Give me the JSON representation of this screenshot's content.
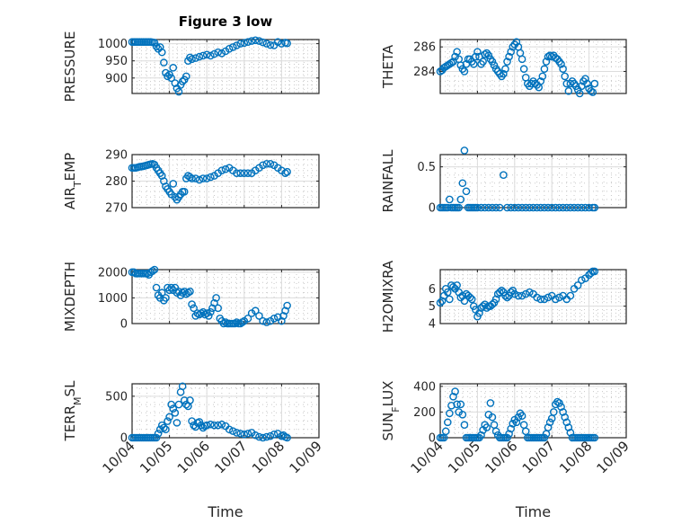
{
  "figure": {
    "title": "Figure 3 low",
    "background": "#ffffff",
    "marker_color": "#0072BD"
  },
  "chart_data": [
    {
      "id": "pressure",
      "type": "scatter",
      "title": "Figure 3 low",
      "ylabel": "PRESSURE",
      "ylabel_sub": null,
      "xlabel": "",
      "xticklabels": [
        "10/04",
        "10/05",
        "10/06",
        "10/07",
        "10/08",
        "10/09"
      ],
      "show_xticklabels": false,
      "xlim": [
        0,
        5
      ],
      "ylim": [
        855,
        1012
      ],
      "yticks": [
        900,
        950,
        1000
      ],
      "yticklabels": [
        "900",
        "950",
        "1000"
      ],
      "grid": true,
      "x": [
        0.0,
        0.05,
        0.1,
        0.15,
        0.2,
        0.25,
        0.3,
        0.35,
        0.4,
        0.45,
        0.5,
        0.55,
        0.6,
        0.65,
        0.7,
        0.75,
        0.8,
        0.85,
        0.9,
        0.95,
        1.0,
        1.05,
        1.1,
        1.15,
        1.2,
        1.25,
        1.3,
        1.35,
        1.4,
        1.45,
        1.5,
        1.55,
        1.6,
        1.7,
        1.8,
        1.9,
        2.0,
        2.1,
        2.2,
        2.3,
        2.4,
        2.5,
        2.6,
        2.7,
        2.8,
        2.9,
        3.0,
        3.1,
        3.2,
        3.3,
        3.4,
        3.5,
        3.6,
        3.7,
        3.8,
        3.9,
        4.0,
        4.1,
        4.15
      ],
      "y": [
        1005,
        1005,
        1005,
        1005,
        1005,
        1005,
        1005,
        1005,
        1005,
        1005,
        1005,
        1004,
        1003,
        992,
        985,
        990,
        975,
        945,
        915,
        905,
        910,
        900,
        930,
        885,
        870,
        860,
        880,
        890,
        895,
        905,
        950,
        960,
        955,
        958,
        962,
        965,
        968,
        965,
        970,
        975,
        972,
        978,
        985,
        990,
        995,
        1000,
        1002,
        1005,
        1008,
        1010,
        1008,
        1004,
        1000,
        996,
        995,
        1005,
        1000,
        1003,
        1001
      ]
    },
    {
      "id": "theta",
      "type": "scatter",
      "ylabel": "THETA",
      "ylabel_sub": null,
      "xlabel": "",
      "xticklabels": [
        "10/04",
        "10/05",
        "10/06",
        "10/07",
        "10/08",
        "10/09"
      ],
      "show_xticklabels": false,
      "xlim": [
        0,
        5
      ],
      "ylim": [
        282.2,
        286.6
      ],
      "yticks": [
        284,
        286
      ],
      "yticklabels": [
        "284",
        "286"
      ],
      "grid": true,
      "x": [
        0.0,
        0.05,
        0.1,
        0.15,
        0.2,
        0.25,
        0.3,
        0.35,
        0.4,
        0.45,
        0.5,
        0.55,
        0.6,
        0.65,
        0.7,
        0.75,
        0.8,
        0.85,
        0.9,
        0.95,
        1.0,
        1.05,
        1.1,
        1.15,
        1.2,
        1.25,
        1.3,
        1.35,
        1.4,
        1.45,
        1.5,
        1.55,
        1.6,
        1.65,
        1.7,
        1.75,
        1.8,
        1.85,
        1.9,
        1.95,
        2.0,
        2.05,
        2.1,
        2.15,
        2.2,
        2.25,
        2.3,
        2.35,
        2.4,
        2.45,
        2.5,
        2.55,
        2.6,
        2.65,
        2.7,
        2.75,
        2.8,
        2.85,
        2.9,
        2.95,
        3.0,
        3.05,
        3.1,
        3.15,
        3.2,
        3.25,
        3.3,
        3.35,
        3.4,
        3.45,
        3.5,
        3.55,
        3.6,
        3.65,
        3.7,
        3.75,
        3.8,
        3.85,
        3.9,
        3.95,
        4.0,
        4.05,
        4.1,
        4.15
      ],
      "y": [
        284.0,
        284.1,
        284.3,
        284.4,
        284.5,
        284.6,
        284.7,
        284.8,
        285.2,
        285.6,
        285.0,
        284.5,
        284.2,
        284.0,
        284.6,
        285.0,
        285.0,
        284.8,
        284.6,
        285.2,
        285.6,
        285.2,
        284.6,
        284.8,
        285.4,
        285.5,
        285.3,
        285.0,
        284.8,
        284.5,
        284.2,
        284.0,
        283.8,
        283.6,
        283.8,
        284.2,
        284.8,
        285.2,
        285.6,
        286.0,
        286.2,
        286.4,
        286.0,
        285.5,
        285.0,
        284.2,
        283.5,
        283.0,
        282.8,
        283.0,
        283.2,
        283.0,
        282.9,
        282.7,
        283.2,
        283.6,
        284.2,
        284.8,
        285.2,
        285.3,
        285.2,
        285.3,
        285.1,
        285.0,
        284.8,
        284.6,
        284.2,
        283.6,
        283.0,
        282.4,
        283.0,
        283.2,
        283.0,
        282.8,
        282.5,
        282.2,
        282.8,
        283.2,
        283.4,
        283.0,
        282.6,
        282.4,
        282.3,
        283.0
      ]
    },
    {
      "id": "air_temp",
      "type": "scatter",
      "ylabel": "AIR",
      "ylabel_sub": "T",
      "ylabel_rest": "EMP",
      "xlabel": "",
      "xticklabels": [
        "10/04",
        "10/05",
        "10/06",
        "10/07",
        "10/08",
        "10/09"
      ],
      "show_xticklabels": false,
      "xlim": [
        0,
        5
      ],
      "ylim": [
        270,
        290
      ],
      "yticks": [
        270,
        280,
        290
      ],
      "yticklabels": [
        "270",
        "280",
        "290"
      ],
      "grid": true,
      "x": [
        0.0,
        0.05,
        0.1,
        0.15,
        0.2,
        0.25,
        0.3,
        0.35,
        0.4,
        0.45,
        0.5,
        0.55,
        0.6,
        0.65,
        0.7,
        0.75,
        0.8,
        0.85,
        0.9,
        0.95,
        1.0,
        1.05,
        1.1,
        1.15,
        1.2,
        1.25,
        1.3,
        1.35,
        1.4,
        1.45,
        1.5,
        1.55,
        1.6,
        1.7,
        1.8,
        1.9,
        2.0,
        2.1,
        2.2,
        2.3,
        2.4,
        2.5,
        2.6,
        2.7,
        2.8,
        2.9,
        3.0,
        3.1,
        3.2,
        3.3,
        3.4,
        3.5,
        3.6,
        3.7,
        3.8,
        3.9,
        4.0,
        4.1,
        4.15
      ],
      "y": [
        285,
        285,
        285,
        285.2,
        285.4,
        285.5,
        285.6,
        285.8,
        286,
        286.2,
        286.4,
        286.5,
        286.2,
        285,
        284,
        283,
        282,
        280,
        278,
        277,
        276,
        275,
        279,
        274,
        273,
        274,
        275,
        276,
        276,
        281,
        282,
        281.5,
        281,
        281,
        280.5,
        281,
        281,
        281.5,
        282,
        283,
        284,
        284.5,
        285,
        284,
        283,
        283,
        283,
        283,
        283,
        284,
        285,
        286,
        286.5,
        286.5,
        286,
        285,
        284,
        283,
        283.5
      ]
    },
    {
      "id": "rainfall",
      "type": "scatter",
      "ylabel": "RAINFALL",
      "ylabel_sub": null,
      "xlabel": "",
      "xticklabels": [
        "10/04",
        "10/05",
        "10/06",
        "10/07",
        "10/08",
        "10/09"
      ],
      "show_xticklabels": false,
      "xlim": [
        0,
        5
      ],
      "ylim": [
        0,
        0.65
      ],
      "yticks": [
        0,
        0.5
      ],
      "yticklabels": [
        "0",
        "0.5"
      ],
      "grid": true,
      "x": [
        0.0,
        0.05,
        0.1,
        0.15,
        0.2,
        0.25,
        0.3,
        0.35,
        0.4,
        0.45,
        0.5,
        0.55,
        0.6,
        0.65,
        0.7,
        0.75,
        0.8,
        0.85,
        0.9,
        0.95,
        1.0,
        1.1,
        1.2,
        1.3,
        1.4,
        1.5,
        1.6,
        1.7,
        1.8,
        1.9,
        2.0,
        2.1,
        2.2,
        2.3,
        2.4,
        2.5,
        2.6,
        2.7,
        2.8,
        2.9,
        3.0,
        3.1,
        3.2,
        3.3,
        3.4,
        3.5,
        3.6,
        3.7,
        3.8,
        3.9,
        4.0,
        4.1,
        4.15
      ],
      "y": [
        0,
        0,
        0,
        0,
        0,
        0.1,
        0,
        0,
        0,
        0,
        0,
        0.1,
        0.3,
        0.7,
        0.2,
        0,
        0,
        0,
        0,
        0,
        0,
        0,
        0,
        0,
        0,
        0,
        0,
        0.4,
        0,
        0,
        0,
        0,
        0,
        0,
        0,
        0,
        0,
        0,
        0,
        0,
        0,
        0,
        0,
        0,
        0,
        0,
        0,
        0,
        0,
        0,
        0,
        0,
        0
      ]
    },
    {
      "id": "mixdepth",
      "type": "scatter",
      "ylabel": "MIXDEPTH",
      "ylabel_sub": null,
      "xlabel": "",
      "xticklabels": [
        "10/04",
        "10/05",
        "10/06",
        "10/07",
        "10/08",
        "10/09"
      ],
      "show_xticklabels": false,
      "xlim": [
        0,
        5
      ],
      "ylim": [
        0,
        2100
      ],
      "yticks": [
        0,
        1000,
        2000
      ],
      "yticklabels": [
        "0",
        "1000",
        "2000"
      ],
      "grid": true,
      "x": [
        0.0,
        0.05,
        0.1,
        0.15,
        0.2,
        0.25,
        0.3,
        0.35,
        0.4,
        0.45,
        0.5,
        0.55,
        0.6,
        0.65,
        0.7,
        0.75,
        0.8,
        0.85,
        0.9,
        0.95,
        1.0,
        1.05,
        1.1,
        1.15,
        1.2,
        1.25,
        1.3,
        1.35,
        1.4,
        1.45,
        1.5,
        1.55,
        1.6,
        1.65,
        1.7,
        1.75,
        1.8,
        1.85,
        1.9,
        1.95,
        2.0,
        2.05,
        2.1,
        2.15,
        2.2,
        2.25,
        2.3,
        2.35,
        2.4,
        2.45,
        2.5,
        2.55,
        2.6,
        2.65,
        2.7,
        2.75,
        2.8,
        2.85,
        2.9,
        2.95,
        3.0,
        3.1,
        3.2,
        3.3,
        3.4,
        3.5,
        3.6,
        3.7,
        3.8,
        3.9,
        4.0,
        4.05,
        4.1,
        4.15
      ],
      "y": [
        2000,
        2000,
        1950,
        1950,
        1950,
        1950,
        1950,
        1950,
        1950,
        1900,
        2000,
        2050,
        2100,
        1400,
        1100,
        1000,
        1200,
        900,
        1000,
        1400,
        1300,
        1400,
        1300,
        1400,
        1200,
        1250,
        1100,
        1200,
        1250,
        1150,
        1200,
        1250,
        750,
        600,
        300,
        400,
        350,
        400,
        450,
        350,
        400,
        300,
        450,
        600,
        800,
        1000,
        600,
        200,
        100,
        0,
        50,
        0,
        0,
        0,
        0,
        0,
        50,
        0,
        0,
        50,
        100,
        200,
        400,
        500,
        300,
        100,
        50,
        100,
        200,
        250,
        100,
        300,
        500,
        700
      ]
    },
    {
      "id": "h2omixra",
      "type": "scatter",
      "ylabel": "H2OMIXRA",
      "ylabel_sub": null,
      "xlabel": "",
      "xticklabels": [
        "10/04",
        "10/05",
        "10/06",
        "10/07",
        "10/08",
        "10/09"
      ],
      "show_xticklabels": false,
      "xlim": [
        0,
        5
      ],
      "ylim": [
        4,
        7.1
      ],
      "yticks": [
        4,
        5,
        6
      ],
      "yticklabels": [
        "4",
        "5",
        "6"
      ],
      "grid": true,
      "x": [
        0.0,
        0.05,
        0.1,
        0.15,
        0.2,
        0.25,
        0.3,
        0.35,
        0.4,
        0.45,
        0.5,
        0.55,
        0.6,
        0.65,
        0.7,
        0.75,
        0.8,
        0.85,
        0.9,
        0.95,
        1.0,
        1.05,
        1.1,
        1.15,
        1.2,
        1.25,
        1.3,
        1.35,
        1.4,
        1.45,
        1.5,
        1.55,
        1.6,
        1.65,
        1.7,
        1.75,
        1.8,
        1.85,
        1.9,
        1.95,
        2.0,
        2.1,
        2.2,
        2.3,
        2.4,
        2.5,
        2.6,
        2.7,
        2.8,
        2.9,
        3.0,
        3.1,
        3.2,
        3.3,
        3.4,
        3.5,
        3.6,
        3.7,
        3.8,
        3.9,
        4.0,
        4.05,
        4.1,
        4.15
      ],
      "y": [
        5.2,
        5.3,
        5.6,
        6.0,
        5.8,
        5.4,
        6.2,
        6.1,
        6.0,
        6.2,
        5.8,
        5.5,
        5.6,
        5.3,
        5.7,
        5.6,
        5.5,
        5.4,
        5.0,
        4.8,
        4.4,
        4.6,
        4.9,
        5.0,
        5.1,
        4.9,
        5.0,
        5.0,
        5.1,
        5.2,
        5.4,
        5.7,
        5.8,
        5.9,
        5.8,
        5.6,
        5.5,
        5.6,
        5.8,
        5.9,
        5.7,
        5.6,
        5.6,
        5.7,
        5.8,
        5.7,
        5.5,
        5.4,
        5.4,
        5.5,
        5.6,
        5.4,
        5.5,
        5.6,
        5.4,
        5.6,
        6.0,
        6.2,
        6.5,
        6.6,
        6.8,
        6.9,
        7.0,
        7.0
      ]
    },
    {
      "id": "terr_msl",
      "type": "scatter",
      "ylabel": "TERR",
      "ylabel_sub": "M",
      "ylabel_rest": "SL",
      "xlabel": "Time",
      "xticklabels": [
        "10/04",
        "10/05",
        "10/06",
        "10/07",
        "10/08",
        "10/09"
      ],
      "show_xticklabels": true,
      "xlim": [
        0,
        5
      ],
      "ylim": [
        0,
        650
      ],
      "yticks": [
        0,
        500
      ],
      "yticklabels": [
        "0",
        "500"
      ],
      "grid": true,
      "x": [
        0.0,
        0.05,
        0.1,
        0.15,
        0.2,
        0.25,
        0.3,
        0.35,
        0.4,
        0.45,
        0.5,
        0.55,
        0.6,
        0.65,
        0.7,
        0.75,
        0.8,
        0.85,
        0.9,
        0.95,
        1.0,
        1.05,
        1.1,
        1.15,
        1.2,
        1.25,
        1.3,
        1.35,
        1.4,
        1.45,
        1.5,
        1.55,
        1.6,
        1.65,
        1.7,
        1.75,
        1.8,
        1.85,
        1.9,
        1.95,
        2.0,
        2.1,
        2.2,
        2.3,
        2.4,
        2.5,
        2.6,
        2.7,
        2.8,
        2.9,
        3.0,
        3.1,
        3.2,
        3.3,
        3.4,
        3.5,
        3.6,
        3.7,
        3.8,
        3.9,
        4.0,
        4.05,
        4.1,
        4.15
      ],
      "y": [
        0,
        0,
        0,
        0,
        0,
        0,
        0,
        0,
        0,
        0,
        0,
        0,
        0,
        0,
        50,
        100,
        150,
        120,
        100,
        200,
        250,
        400,
        350,
        300,
        180,
        400,
        550,
        620,
        450,
        400,
        380,
        450,
        200,
        150,
        130,
        180,
        190,
        150,
        120,
        140,
        150,
        160,
        150,
        150,
        160,
        140,
        100,
        80,
        60,
        50,
        40,
        50,
        60,
        30,
        10,
        0,
        10,
        20,
        40,
        50,
        20,
        30,
        10,
        0
      ]
    },
    {
      "id": "sun_flux",
      "type": "scatter",
      "ylabel": "SUN",
      "ylabel_sub": "F",
      "ylabel_rest": "LUX",
      "xlabel": "Time",
      "xticklabels": [
        "10/04",
        "10/05",
        "10/06",
        "10/07",
        "10/08",
        "10/09"
      ],
      "show_xticklabels": true,
      "xlim": [
        0,
        5
      ],
      "ylim": [
        0,
        420
      ],
      "yticks": [
        0,
        200,
        400
      ],
      "yticklabels": [
        "0",
        "200",
        "400"
      ],
      "grid": true,
      "x": [
        0.0,
        0.05,
        0.1,
        0.15,
        0.2,
        0.25,
        0.3,
        0.35,
        0.4,
        0.45,
        0.5,
        0.55,
        0.6,
        0.65,
        0.7,
        0.75,
        0.8,
        0.85,
        0.9,
        0.95,
        1.0,
        1.05,
        1.1,
        1.15,
        1.2,
        1.25,
        1.3,
        1.35,
        1.4,
        1.45,
        1.5,
        1.55,
        1.6,
        1.65,
        1.7,
        1.75,
        1.8,
        1.85,
        1.9,
        1.95,
        2.0,
        2.05,
        2.1,
        2.15,
        2.2,
        2.25,
        2.3,
        2.35,
        2.4,
        2.45,
        2.5,
        2.55,
        2.6,
        2.65,
        2.7,
        2.75,
        2.8,
        2.85,
        2.9,
        2.95,
        3.0,
        3.05,
        3.1,
        3.15,
        3.2,
        3.25,
        3.3,
        3.35,
        3.4,
        3.45,
        3.5,
        3.55,
        3.6,
        3.65,
        3.7,
        3.75,
        3.8,
        3.85,
        3.9,
        3.95,
        4.0,
        4.05,
        4.1,
        4.15
      ],
      "y": [
        0,
        0,
        0,
        50,
        120,
        190,
        250,
        320,
        360,
        260,
        200,
        260,
        180,
        100,
        0,
        0,
        0,
        0,
        0,
        0,
        0,
        0,
        20,
        60,
        100,
        80,
        180,
        270,
        160,
        100,
        50,
        20,
        0,
        0,
        0,
        0,
        0,
        30,
        70,
        110,
        140,
        120,
        160,
        190,
        170,
        100,
        50,
        0,
        0,
        0,
        0,
        0,
        0,
        0,
        0,
        0,
        0,
        30,
        80,
        120,
        150,
        200,
        260,
        280,
        270,
        240,
        200,
        160,
        120,
        80,
        40,
        0,
        0,
        0,
        0,
        0,
        0,
        0,
        0,
        0,
        0,
        0,
        0,
        0
      ]
    }
  ]
}
